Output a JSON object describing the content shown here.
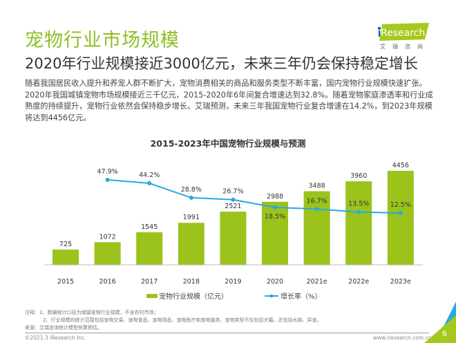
{
  "header": {
    "title": "宠物行业市场规模",
    "subtitle": "2020年行业规模接近3000亿元，未来三年仍会保持稳定增长",
    "body": "随着我国居民收入提升和养宠人群不断扩大，宠物消费相关的商品和服务类型不断丰富，国内宠物行业规模快速扩张。2020年我国城镇宠物市场规模接近三千亿元，2015-2020年6年间复合增速达到32.8%。随着宠物家庭渗透率和行业成熟度的持续提升，宠物行业依然会保持稳步增长。艾瑞预测，未来三年我国宠物行业复合增速在14.2%，到2023年规模将达到4456亿元。"
  },
  "logo": {
    "text": "iResearch",
    "cn": "艾瑞咨询"
  },
  "chart_data": {
    "type": "bar+line",
    "title": "2015-2023年中国宠物行业规模与预测",
    "categories": [
      "2015",
      "2016",
      "2017",
      "2018",
      "2019",
      "2020",
      "2021e",
      "2022e",
      "2023e"
    ],
    "series": [
      {
        "name": "宠物行业规模（亿元）",
        "type": "bar",
        "color": "#9bc31c",
        "values": [
          725,
          1072,
          1545,
          1991,
          2521,
          2988,
          3488,
          3960,
          4456
        ],
        "labels": [
          "725",
          "1072",
          "1545",
          "1991",
          "2521",
          "2988",
          "3488",
          "3960",
          "4456"
        ]
      },
      {
        "name": "增长率（%）",
        "type": "line",
        "color": "#2aa9e0",
        "values": [
          null,
          47.9,
          44.2,
          28.8,
          26.7,
          18.5,
          16.7,
          13.5,
          12.5
        ],
        "labels": [
          "",
          "47.9%",
          "44.2%",
          "28.8%",
          "26.7%",
          "18.5%",
          "16.7%",
          "13.5%",
          "12.5%"
        ]
      }
    ],
    "legend": "bottom",
    "grid": false
  },
  "notes": {
    "line1": "注释：1、数据统计口径为城镇宠物行业规模，不含农村市场；",
    "line2": "2、行业规模的统计范围包括宠物交易、宠物食品、宠物用品、宠物医疗和宠物服务，宠物类型不仅包括犬猫，还包括水族、异宠。",
    "source": "来源：艾瑞咨询统计模型核算预估。"
  },
  "footer": {
    "copyright": "©2021.3 iResearch Inc.",
    "url": "www.iresearch.com.cn",
    "page": "6"
  }
}
